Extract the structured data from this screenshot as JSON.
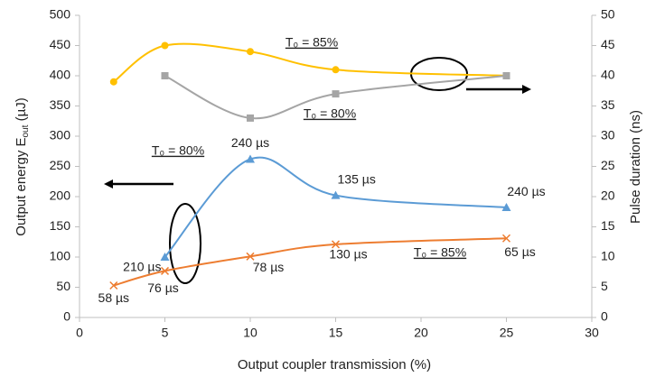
{
  "chart_data": {
    "type": "line",
    "x_label": "Output coupler transmission (%)",
    "y_label": {
      "main": "Output energy E",
      "sub": "out",
      "end": " (µJ)"
    },
    "y2_label": "Pulse duration (ns)",
    "xlim": [
      0,
      30
    ],
    "xticks": [
      0,
      5,
      10,
      15,
      20,
      25,
      30
    ],
    "ylim": [
      0,
      500
    ],
    "yticks": [
      0,
      50,
      100,
      150,
      200,
      250,
      300,
      350,
      400,
      450,
      500
    ],
    "y2lim": [
      0,
      50
    ],
    "y2ticks": [
      0,
      5,
      10,
      15,
      20,
      25,
      30,
      35,
      40,
      45,
      50
    ],
    "series": [
      {
        "name": "Pulse duration T0 = 85%",
        "color": "#FFC000",
        "marker": "circle",
        "axis": "y2",
        "x": [
          2,
          5,
          10,
          15,
          25
        ],
        "values": [
          39,
          45,
          44,
          41,
          40
        ]
      },
      {
        "name": "Pulse duration T0 = 80%",
        "color": "#A5A5A5",
        "marker": "square",
        "axis": "y2",
        "x": [
          5,
          10,
          15,
          25
        ],
        "values": [
          40,
          33,
          37,
          40
        ]
      },
      {
        "name": "Output energy T0 = 80%",
        "color": "#5B9BD5",
        "marker": "triangle",
        "x": [
          5,
          10,
          15,
          25
        ],
        "values": [
          100,
          262,
          202,
          182
        ],
        "point_labels": [
          "210 µs",
          "240 µs",
          "135 µs",
          "240 µs"
        ]
      },
      {
        "name": "Output energy T0 = 85%",
        "color": "#ED7D31",
        "marker": "x",
        "x": [
          2,
          5,
          10,
          15,
          25
        ],
        "values": [
          53,
          77,
          101,
          121,
          131
        ],
        "point_labels": [
          "58 µs",
          "76 µs",
          "78 µs",
          "130 µs",
          "65 µs"
        ]
      }
    ],
    "annotations": [
      "T₀ = 85%",
      "T₀ = 80%",
      "T₀ = 80%",
      "T₀ = 85%"
    ]
  }
}
